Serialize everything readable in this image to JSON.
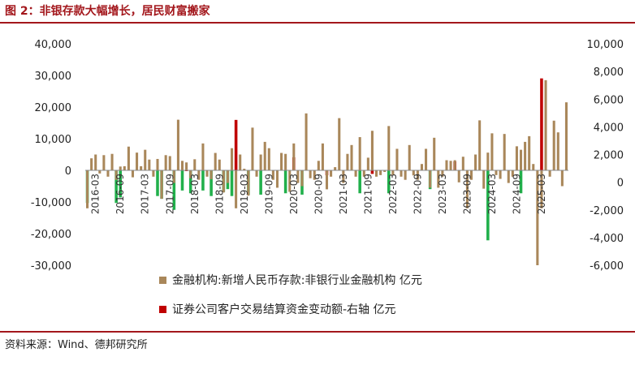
{
  "figure": {
    "title": "图 2：非银存款大幅增长，居民财富搬家",
    "source": "资料来源：Wind、德邦研究所"
  },
  "colors": {
    "title": "#a3171c",
    "series1": "#a9875a",
    "series2_positive": "#c00000",
    "series2_negative": "#21b04b",
    "axis": "#888888"
  },
  "chart_data": {
    "type": "bar",
    "left_axis": {
      "ylim": [
        -30000,
        40000
      ],
      "ticks": [
        "-30,000",
        "-20,000",
        "-10,000",
        "0",
        "10,000",
        "20,000",
        "30,000",
        "40,000"
      ]
    },
    "right_axis": {
      "ylim": [
        -6000,
        10000
      ],
      "ticks": [
        "-6,000",
        "-4,000",
        "-2,000",
        "0",
        "2,000",
        "4,000",
        "6,000",
        "8,000",
        "10,000"
      ]
    },
    "x_tick_labels": [
      "2016-03",
      "2016-09",
      "2017-03",
      "2017-09",
      "2018-03",
      "2018-09",
      "2019-03",
      "2019-09",
      "2020-03",
      "2020-09",
      "2021-03",
      "2021-09",
      "2022-03",
      "2022-09",
      "2023-03",
      "2023-09",
      "2024-03",
      "2024-09",
      "2025-03"
    ],
    "x_tick_months": [
      3,
      9,
      15,
      21,
      27,
      33,
      39,
      45,
      51,
      57,
      63,
      69,
      75,
      81,
      87,
      93,
      99,
      105,
      111
    ],
    "legend": [
      "金融机构:新增人民币存款:非银行业金融机构 亿元",
      "证券公司客户交易结算资金变动额-右轴 亿元"
    ],
    "series": [
      {
        "name": "金融机构:新增人民币存款:非银行业金融机构 亿元",
        "axis": "left",
        "values": [
          -12000,
          3800,
          5000,
          -1000,
          4800,
          -2000,
          5200,
          -3000,
          1200,
          1300,
          7500,
          -2200,
          5600,
          1300,
          6500,
          3400,
          -2000,
          3600,
          -9000,
          4800,
          4500,
          -4000,
          16000,
          3000,
          2500,
          -2500,
          3500,
          -3000,
          8500,
          -2000,
          -2800,
          5500,
          3400,
          -7000,
          -4000,
          7000,
          -12000,
          5000,
          500,
          -8000,
          13500,
          -2000,
          5000,
          9000,
          7000,
          -3000,
          -5500,
          5500,
          5200,
          -6800,
          8500,
          -4000,
          -5000,
          18000,
          -2500,
          -3000,
          3000,
          8500,
          -6000,
          -2000,
          1000,
          16500,
          -4000,
          5200,
          8000,
          -2000,
          10500,
          -2000,
          4000,
          12500,
          -2000,
          -1500,
          -500,
          14000,
          -1500,
          6800,
          -2000,
          -3000,
          8000,
          -1600,
          -3000,
          2000,
          6800,
          -5500,
          10300,
          -5500,
          -2000,
          3200,
          3000,
          3200,
          -3800,
          4300,
          -12000,
          -3000,
          5000,
          15800,
          -5800,
          5600,
          11700,
          -1500,
          -2700,
          11500,
          -4000,
          -2000,
          7600,
          6500,
          9000,
          10800,
          2000,
          -30000,
          -12000,
          28500,
          -2000,
          15700,
          12000,
          -5000,
          21500
        ]
      },
      {
        "name": "证券公司客户交易结算资金变动额-右轴 亿元",
        "axis": "right",
        "values": [
          -1500,
          0,
          0,
          0,
          0,
          0,
          0,
          -1500,
          -1100,
          0,
          0,
          0,
          0,
          0,
          0,
          0,
          0,
          -1000,
          -1200,
          0,
          0,
          -2000,
          0,
          -600,
          800,
          -800,
          0,
          0,
          -600,
          0,
          -1000,
          0,
          0,
          -700,
          -500,
          -1000,
          4500,
          0,
          0,
          -900,
          0,
          0,
          -900,
          0,
          0,
          0,
          0,
          0,
          -800,
          0,
          1800,
          0,
          -900,
          0,
          0,
          0,
          0,
          0,
          500,
          0,
          0,
          0,
          0,
          0,
          0,
          0,
          -800,
          0,
          0,
          600,
          0,
          0,
          0,
          -800,
          0,
          0,
          0,
          0,
          0,
          0,
          0,
          0,
          0,
          -500,
          0,
          0,
          0,
          0,
          0,
          1500,
          0,
          0,
          0,
          0,
          0,
          0,
          0,
          -4200,
          0,
          0,
          0,
          0,
          0,
          0,
          0,
          -800,
          0,
          0,
          0,
          0,
          7500,
          0,
          0,
          0,
          0,
          0,
          0,
          0,
          0
        ]
      }
    ]
  }
}
